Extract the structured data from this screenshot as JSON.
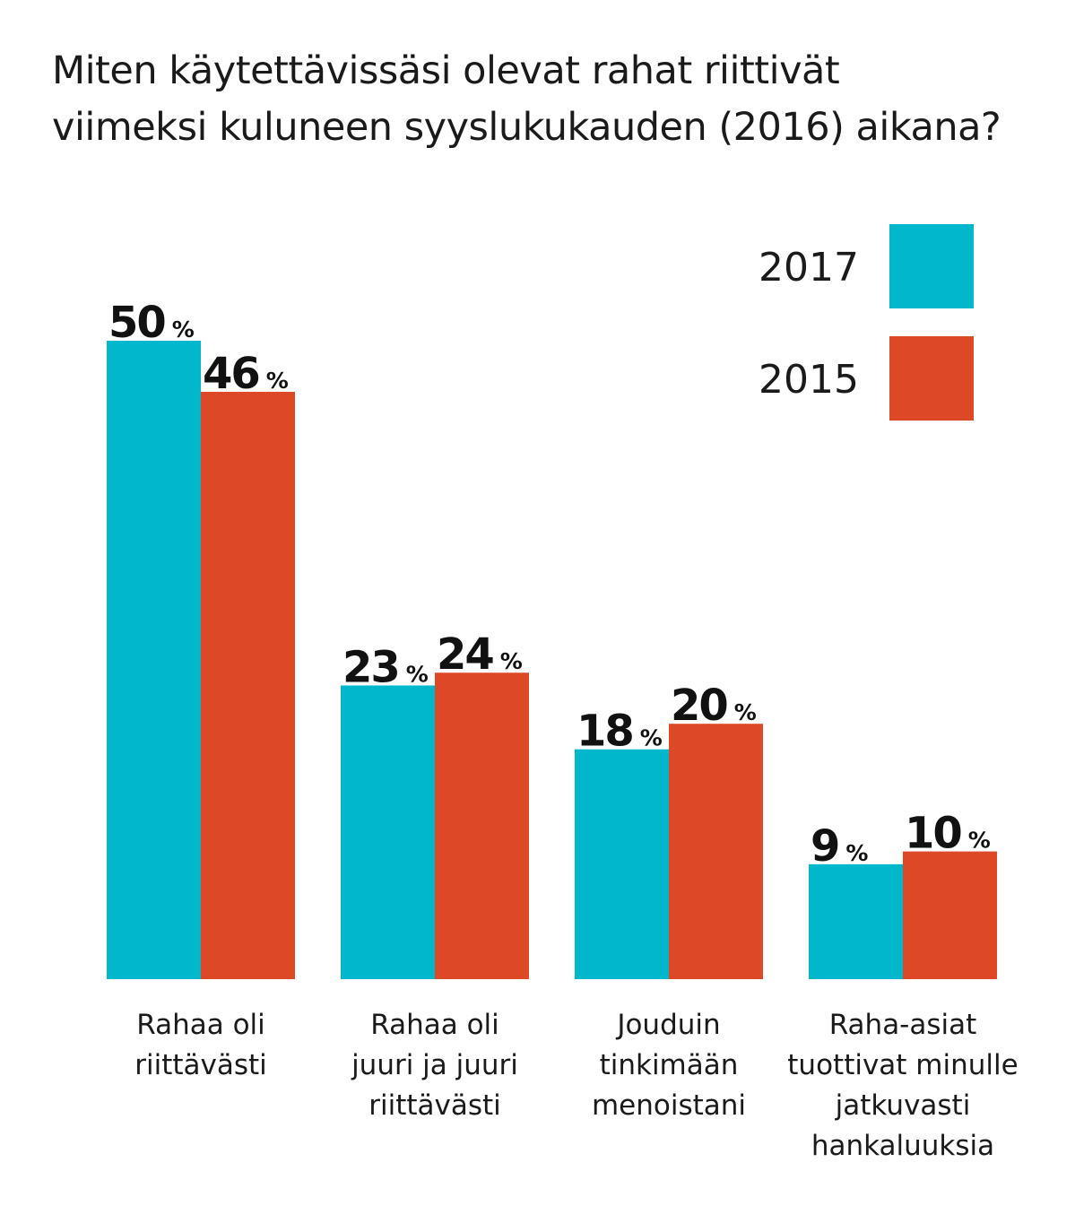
{
  "chart_data": {
    "type": "bar",
    "title": [
      "Miten käytettävissäsi olevat rahat riittivät",
      "viimeksi kuluneen syyslukukauden (2016) aikana?"
    ],
    "categories": [
      [
        "Rahaa oli",
        "riittävästi"
      ],
      [
        "Rahaa oli",
        "juuri ja juuri",
        "riittävästi"
      ],
      [
        "Jouduin",
        "tinkimään",
        "menoistani"
      ],
      [
        "Raha-asiat",
        "tuottivat minulle",
        "jatkuvasti",
        "hankaluuksia"
      ]
    ],
    "series": [
      {
        "name": "2017",
        "color": "#00b7cb",
        "values": [
          50,
          23,
          18,
          9
        ]
      },
      {
        "name": "2015",
        "color": "#dd4827",
        "values": [
          46,
          24,
          20,
          10
        ]
      }
    ],
    "value_suffix": "%",
    "ylim": [
      0,
      50
    ],
    "xlabel": "",
    "ylabel": "",
    "grid": false,
    "legend_position": "top-right"
  }
}
